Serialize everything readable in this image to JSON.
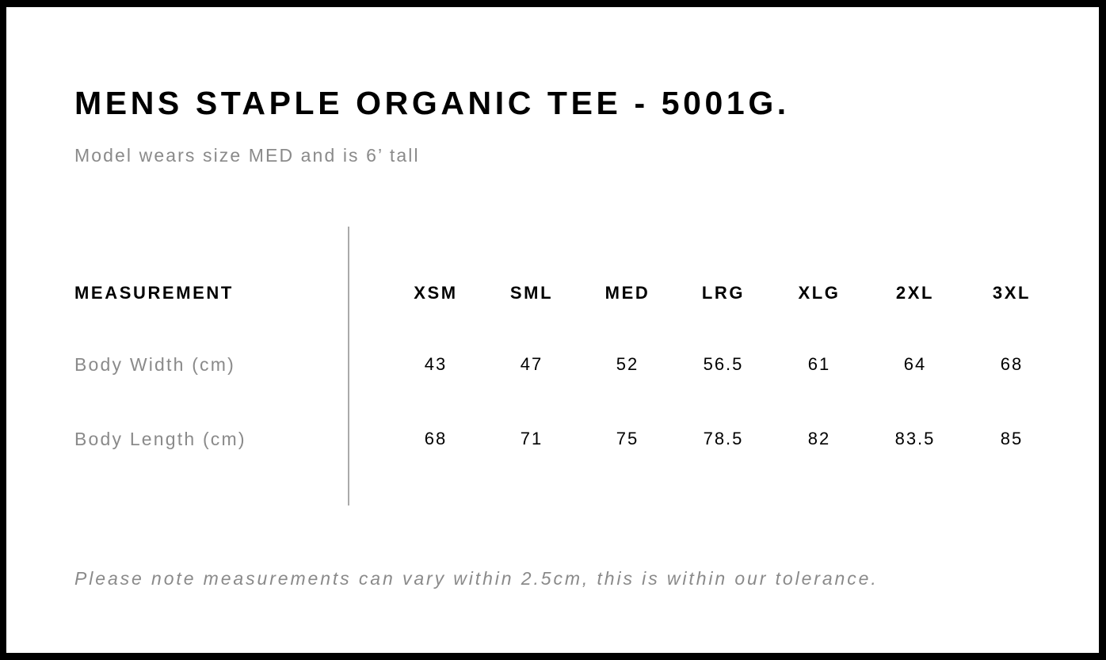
{
  "title": "MENS STAPLE ORGANIC TEE - 5001G.",
  "subtitle": "Model wears size MED and is 6’ tall",
  "table": {
    "header_label": "MEASUREMENT",
    "sizes": [
      "XSM",
      "SML",
      "MED",
      "LRG",
      "XLG",
      "2XL",
      "3XL"
    ],
    "rows": [
      {
        "label": "Body Width (cm)",
        "values": [
          "43",
          "47",
          "52",
          "56.5",
          "61",
          "64",
          "68"
        ]
      },
      {
        "label": "Body Length (cm)",
        "values": [
          "68",
          "71",
          "75",
          "78.5",
          "82",
          "83.5",
          "85"
        ]
      }
    ]
  },
  "footer_note": "Please note measurements can vary within 2.5cm, this is within our tolerance."
}
